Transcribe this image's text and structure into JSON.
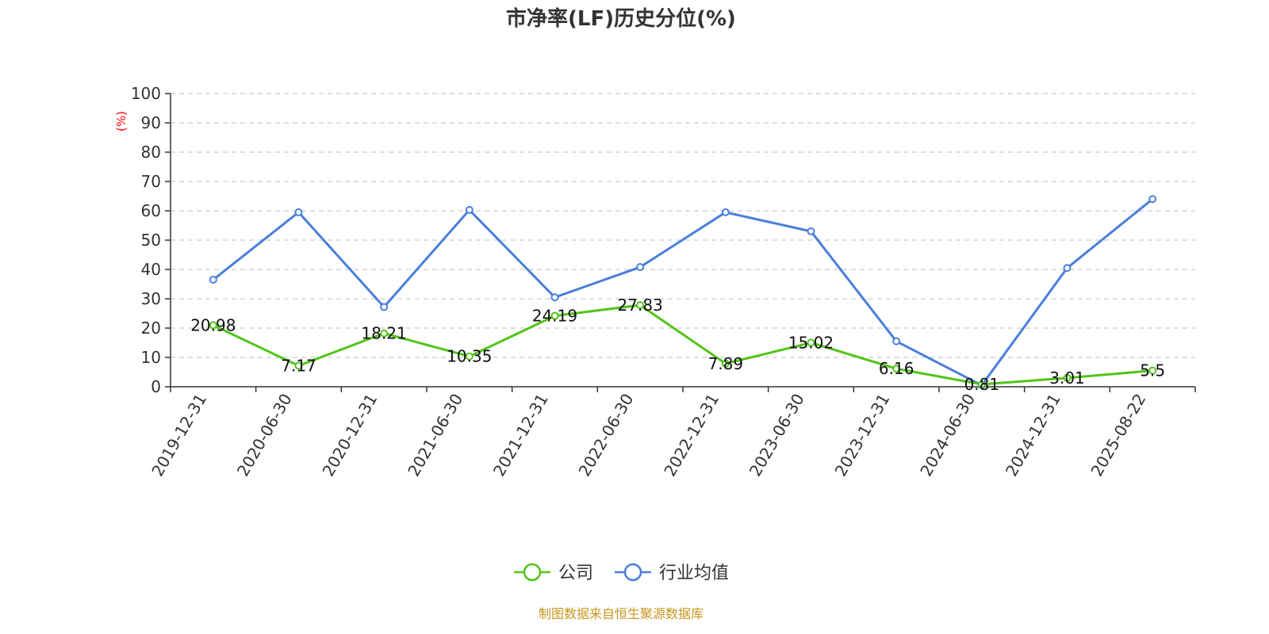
{
  "chart_data": {
    "type": "line",
    "title": "市净率(LF)历史分位(%)",
    "ylabel": "(%)",
    "ylim": [
      0,
      100
    ],
    "yticks": [
      0,
      10,
      20,
      30,
      40,
      50,
      60,
      70,
      80,
      90,
      100
    ],
    "grid": true,
    "legend_position": "bottom",
    "categories": [
      "2019-12-31",
      "2020-06-30",
      "2020-12-31",
      "2021-06-30",
      "2021-12-31",
      "2022-06-30",
      "2022-12-31",
      "2023-06-30",
      "2023-12-31",
      "2024-06-30",
      "2024-12-31",
      "2025-08-22"
    ],
    "series": [
      {
        "name": "公司",
        "color": "#52c41a",
        "values": [
          20.98,
          7.17,
          18.21,
          10.35,
          24.19,
          27.83,
          7.89,
          15.02,
          6.16,
          0.81,
          3.01,
          5.5
        ],
        "labels": [
          "20.98",
          "7.17",
          "18.21",
          "10.35",
          "24.19",
          "27.83",
          "7.89",
          "15.02",
          "6.16",
          "0.81",
          "3.01",
          "5.5"
        ]
      },
      {
        "name": "行业均值",
        "color": "#4a7fdb",
        "values": [
          36.5,
          59.5,
          27.2,
          60.3,
          30.5,
          40.8,
          59.5,
          53.0,
          15.5,
          0.5,
          40.5,
          64.0
        ]
      }
    ],
    "source": "制图数据来自恒生聚源数据库"
  }
}
